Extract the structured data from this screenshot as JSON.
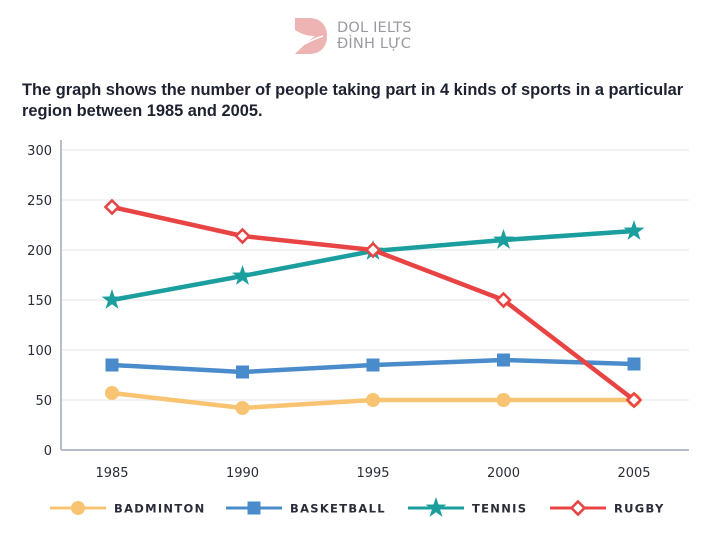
{
  "logo": {
    "line1": "DOL IELTS",
    "line2": "ĐÌNH LỰC",
    "color": "#e8a5a5"
  },
  "title": "The graph shows the number of people taking part in 4 kinds of sports in a particular region between 1985 and 2005.",
  "chart_data": {
    "type": "line",
    "title": "The graph shows the number of people taking part in 4 kinds of sports in a particular region between 1985 and 2005.",
    "xlabel": "",
    "ylabel": "",
    "x": [
      "1985",
      "1990",
      "1995",
      "2000",
      "2005"
    ],
    "ylim": [
      0,
      300
    ],
    "yticks": [
      0,
      50,
      100,
      150,
      200,
      250,
      300
    ],
    "grid": true,
    "legend_position": "bottom",
    "series": [
      {
        "name": "BADMINTON",
        "marker": "circle",
        "color": "#f8c471",
        "values": [
          57,
          42,
          50,
          50,
          50
        ]
      },
      {
        "name": "BASKETBALL",
        "marker": "square",
        "color": "#4a8ccb",
        "values": [
          85,
          78,
          85,
          90,
          86
        ]
      },
      {
        "name": "TENNIS",
        "marker": "star",
        "color": "#1a9e9e",
        "values": [
          150,
          174,
          199,
          210,
          219
        ]
      },
      {
        "name": "RUGBY",
        "marker": "diamond",
        "color": "#e84444",
        "values": [
          243,
          214,
          200,
          150,
          50
        ]
      }
    ]
  }
}
